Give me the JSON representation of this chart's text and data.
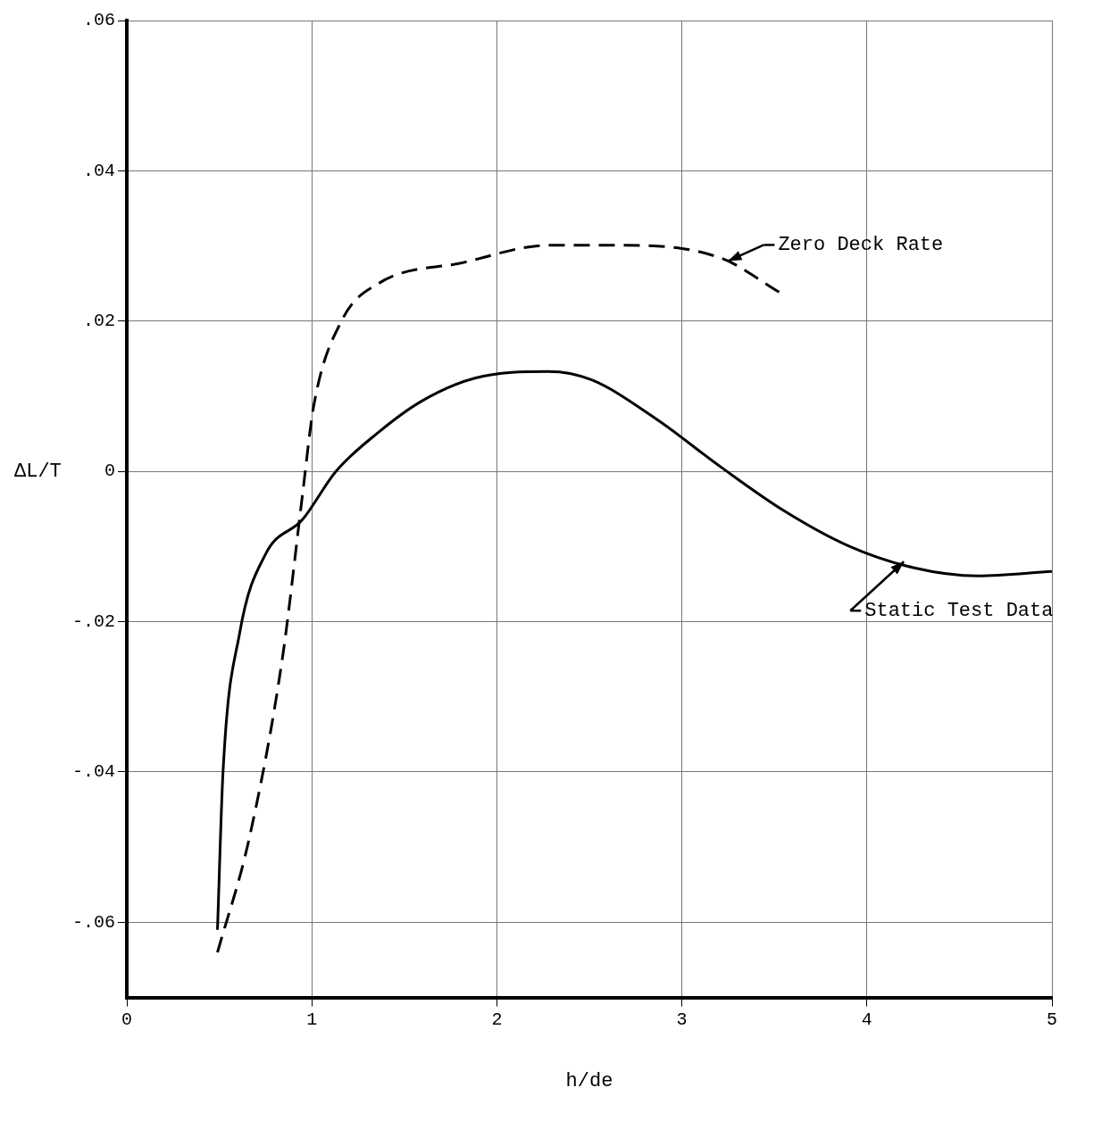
{
  "chart_data": {
    "type": "line",
    "xlabel": "h/de",
    "ylabel": "ΔL/T",
    "xlim": [
      0,
      5
    ],
    "xticks": [
      0,
      1,
      2,
      3,
      4,
      5
    ],
    "ylim": [
      -0.07,
      0.06
    ],
    "yticks": [
      {
        "value": 0.06,
        "label": ".06"
      },
      {
        "value": 0.04,
        "label": ".04"
      },
      {
        "value": 0.02,
        "label": ".02"
      },
      {
        "value": 0,
        "label": "0"
      },
      {
        "value": -0.02,
        "label": "-.02"
      },
      {
        "value": -0.04,
        "label": "-.04"
      },
      {
        "value": -0.06,
        "label": "-.06"
      }
    ],
    "grid": true,
    "legend": false,
    "marker": "none",
    "series": [
      {
        "color": "#000000",
        "line_style": "solid",
        "x": [
          0.49,
          0.52,
          0.61,
          0.75,
          0.95,
          1.13,
          1.36,
          1.59,
          1.88,
          2.28,
          2.51,
          2.86,
          3.21,
          3.55,
          3.9,
          4.25,
          4.6,
          5.0
        ],
        "values": [
          -0.061,
          -0.04,
          -0.0215,
          -0.011,
          -0.0064,
          0,
          0.0052,
          0.0093,
          0.0124,
          0.0133,
          0.0122,
          0.007,
          0.0006,
          -0.0052,
          -0.0099,
          -0.0128,
          -0.0139,
          -0.0133
        ]
      },
      {
        "color": "#000000",
        "line_style": "dashed",
        "x": [
          0.49,
          0.66,
          0.84,
          0.95,
          1.01,
          1.16,
          1.36,
          1.82,
          2.28,
          2.69,
          3.21,
          3.53
        ],
        "values": [
          -0.064,
          -0.049,
          -0.025,
          -0.003,
          0.0087,
          0.02,
          0.025,
          0.0278,
          0.0301,
          0.0301,
          0.0284,
          0.0238
        ]
      }
    ],
    "annotations": [
      {
        "text": "Zero Deck Rate",
        "x": 3.25,
        "y": 0.028
      },
      {
        "text": "Static Test Data",
        "x": 4.2,
        "y": -0.012
      }
    ]
  }
}
